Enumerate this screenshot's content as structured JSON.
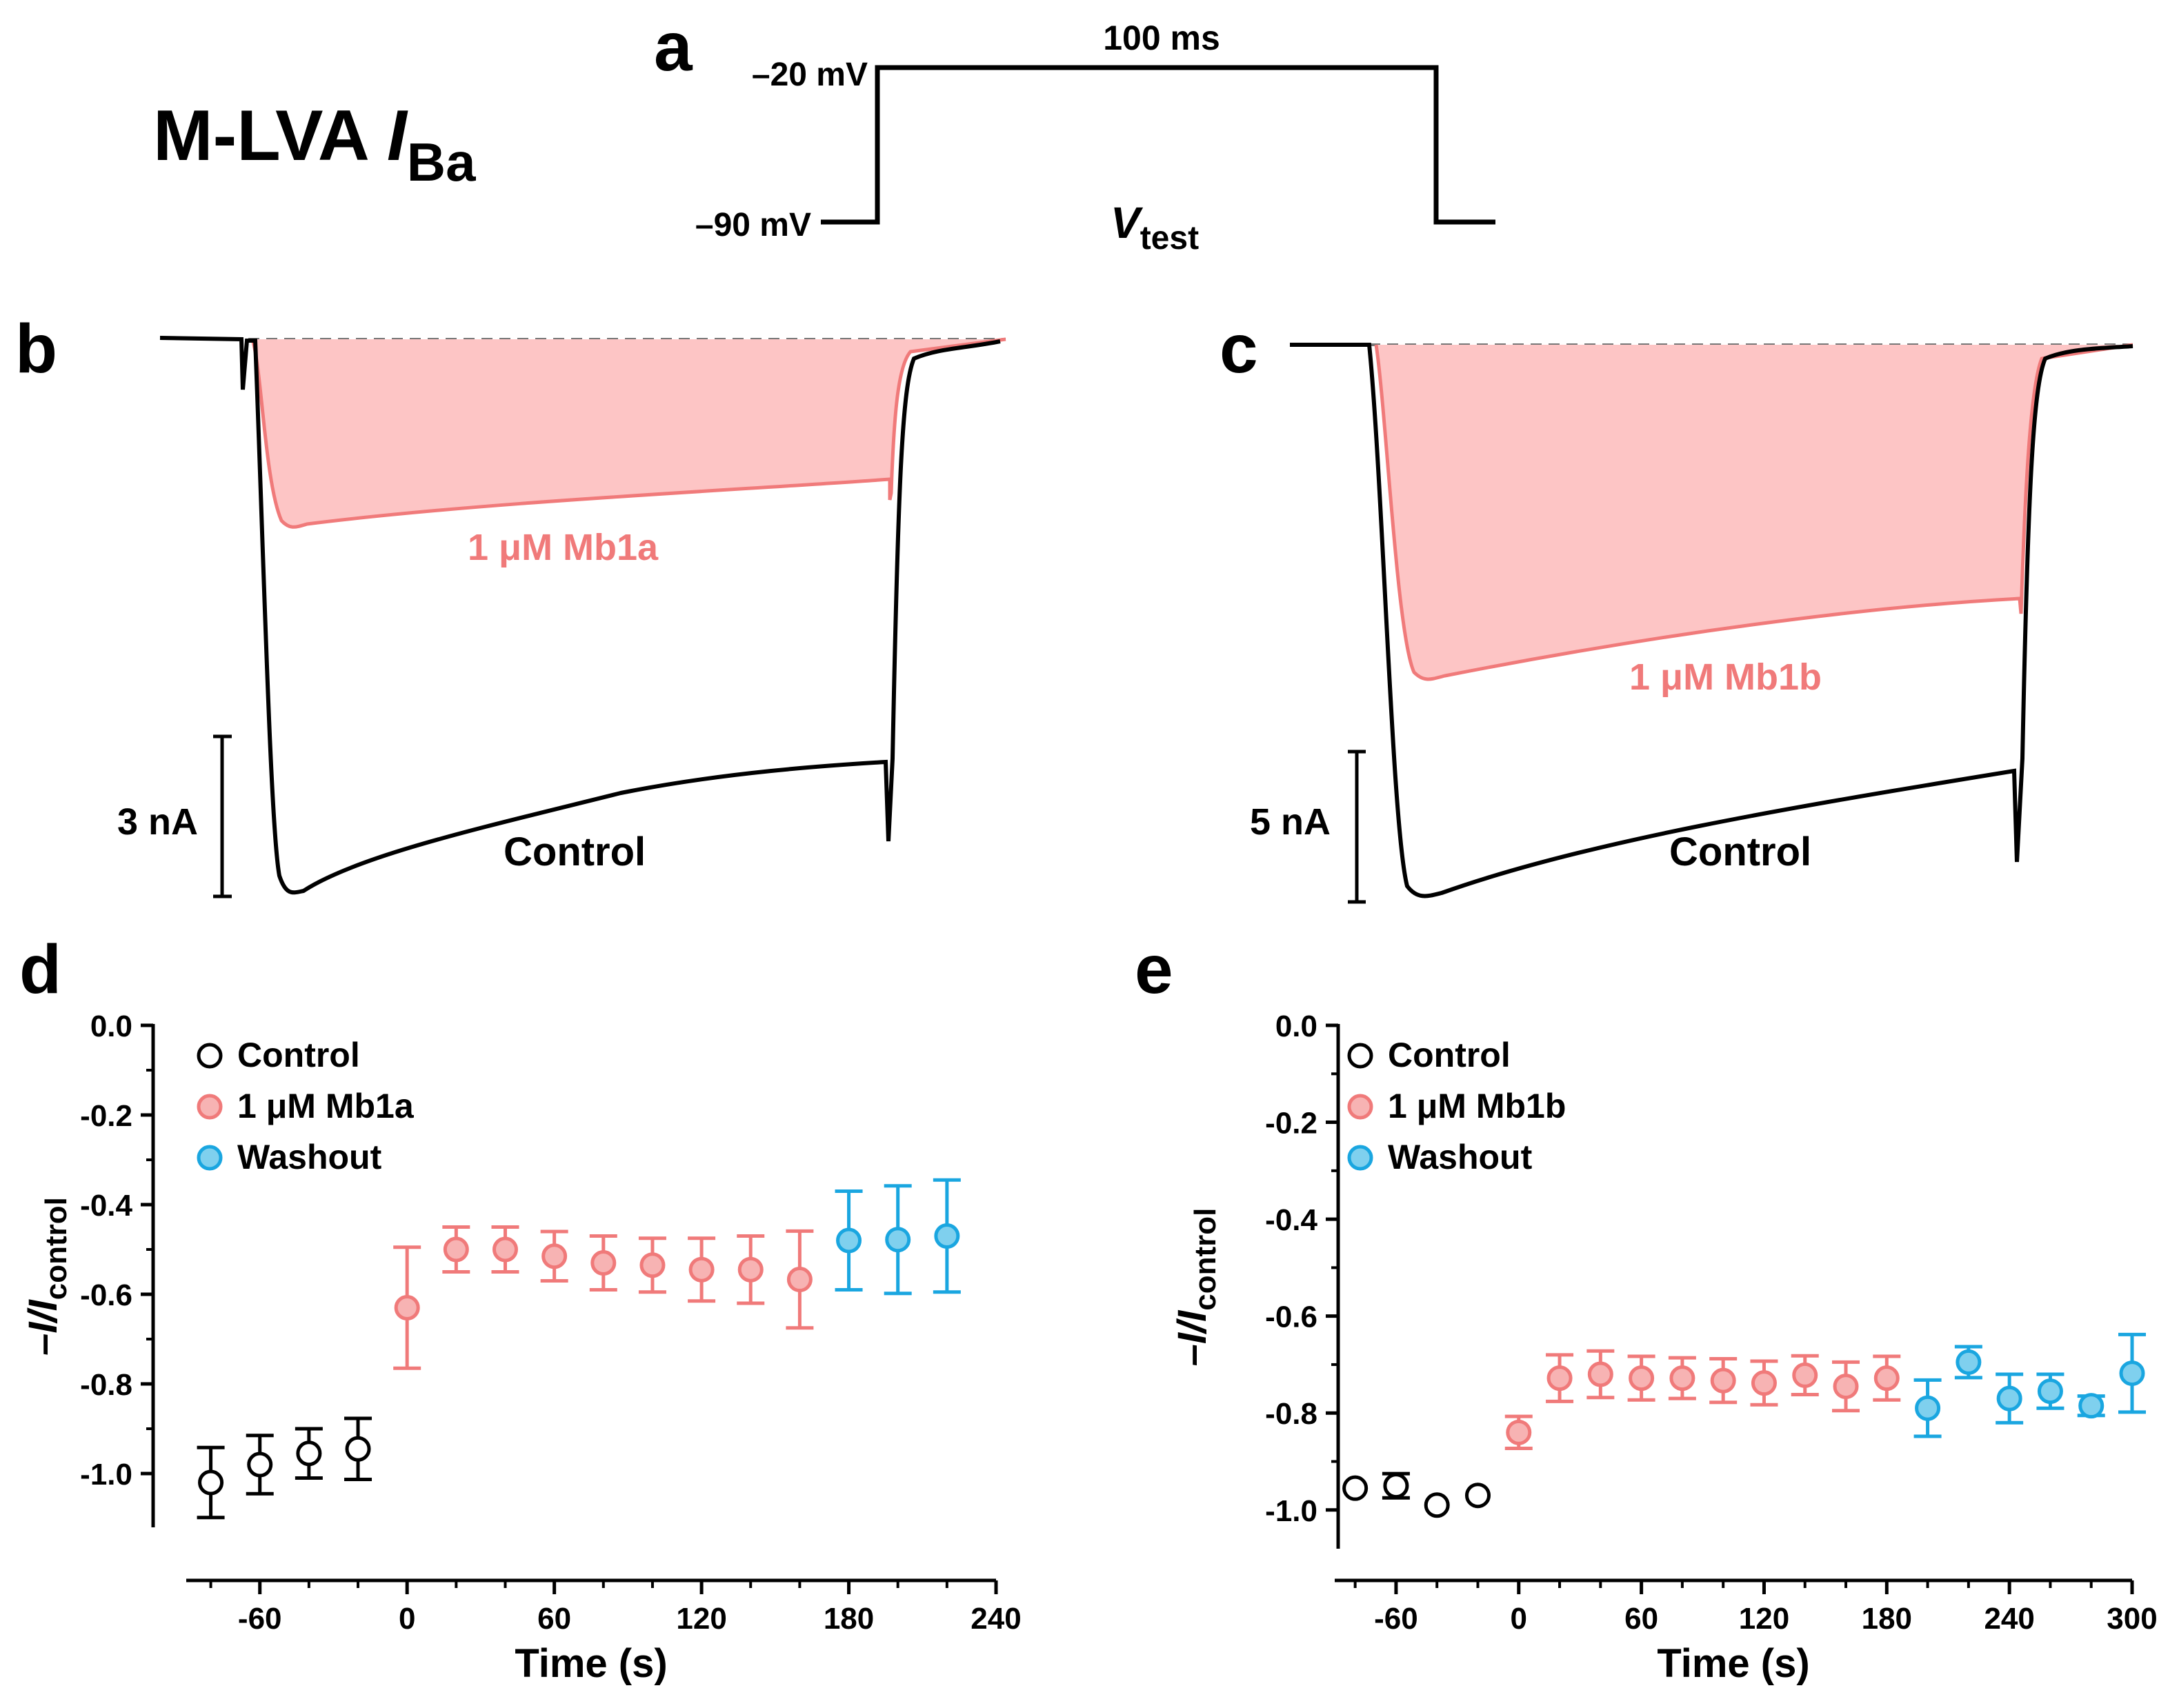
{
  "main_title": {
    "prefix": "M-LVA ",
    "italic": "I",
    "subscript": "Ba"
  },
  "colors": {
    "control": "#000000",
    "drug": "#f07a7a",
    "drug_fill": "#fdc5c5",
    "drug_marker": "#f7b3b3",
    "washout": "#1aa6e0",
    "washout_marker": "#7fd0ee",
    "baseline": "#777777"
  },
  "panel_a": {
    "letter": "a",
    "v_high": "–20 mV",
    "v_low": "–90 mV",
    "duration": "100 ms",
    "vtest_italic": "V",
    "vtest_sub": "test"
  },
  "panel_b": {
    "letter": "b",
    "drug_label": "1 μM Mb1a",
    "control_label": "Control",
    "scale_label": "3 nA"
  },
  "panel_c": {
    "letter": "c",
    "drug_label": "1 μM Mb1b",
    "control_label": "Control",
    "scale_label": "5 nA"
  },
  "chart_data": [
    {
      "panel": "d",
      "type": "scatter",
      "xlabel": "Time (s)",
      "ylabel_prefix": "–I/I",
      "ylabel_sub": "control",
      "xlim": [
        -90,
        240
      ],
      "ylim": [
        -1.12,
        0.0
      ],
      "xticks": [
        -60,
        0,
        60,
        120,
        180,
        240
      ],
      "yticks": [
        0.0,
        -0.2,
        -0.4,
        -0.6,
        -0.8,
        -1.0
      ],
      "xtick_labels": [
        "-60",
        "0",
        "60",
        "120",
        "180",
        "240"
      ],
      "ytick_labels": [
        "0.0",
        "-0.2",
        "-0.4",
        "-0.6",
        "-0.8",
        "-1.0"
      ],
      "legend": [
        "Control",
        "1 μM Mb1a",
        "Washout"
      ],
      "series": [
        {
          "name": "Control",
          "x": [
            -80,
            -60,
            -40,
            -20
          ],
          "y": [
            -1.02,
            -0.98,
            -0.955,
            -0.945
          ],
          "err": [
            0.078,
            0.065,
            0.055,
            0.068
          ]
        },
        {
          "name": "1 μM Mb1a",
          "x": [
            0,
            20,
            40,
            60,
            80,
            100,
            120,
            140,
            160
          ],
          "y": [
            -0.63,
            -0.5,
            -0.5,
            -0.515,
            -0.53,
            -0.535,
            -0.545,
            -0.545,
            -0.567
          ],
          "err": [
            0.135,
            0.05,
            0.05,
            0.055,
            0.06,
            0.06,
            0.07,
            0.075,
            0.108
          ]
        },
        {
          "name": "Washout",
          "x": [
            180,
            200,
            220
          ],
          "y": [
            -0.48,
            -0.478,
            -0.47
          ],
          "err": [
            0.11,
            0.12,
            0.125
          ]
        }
      ]
    },
    {
      "panel": "e",
      "type": "scatter",
      "xlabel": "Time (s)",
      "ylabel_prefix": "–I/I",
      "ylabel_sub": "control",
      "xlim": [
        -90,
        300
      ],
      "ylim": [
        -1.08,
        0.0
      ],
      "xticks": [
        -60,
        0,
        60,
        120,
        180,
        240,
        300
      ],
      "yticks": [
        0.0,
        -0.2,
        -0.4,
        -0.6,
        -0.8,
        -1.0
      ],
      "xtick_labels": [
        "-60",
        "0",
        "60",
        "120",
        "180",
        "240",
        "300"
      ],
      "ytick_labels": [
        "0.0",
        "-0.2",
        "-0.4",
        "-0.6",
        "-0.8",
        "-1.0"
      ],
      "legend": [
        "Control",
        "1 μM Mb1b",
        "Washout"
      ],
      "series": [
        {
          "name": "Control",
          "x": [
            -80,
            -60,
            -40,
            -20
          ],
          "y": [
            -0.955,
            -0.95,
            -0.99,
            -0.97
          ],
          "err": [
            0.0,
            0.025,
            0.0,
            0.0
          ]
        },
        {
          "name": "1 μM Mb1b",
          "x": [
            0,
            20,
            40,
            60,
            80,
            100,
            120,
            140,
            160,
            180
          ],
          "y": [
            -0.84,
            -0.728,
            -0.72,
            -0.728,
            -0.728,
            -0.733,
            -0.738,
            -0.722,
            -0.745,
            -0.728
          ],
          "err": [
            0.033,
            0.048,
            0.048,
            0.045,
            0.042,
            0.045,
            0.045,
            0.04,
            0.05,
            0.045
          ]
        },
        {
          "name": "Washout",
          "x": [
            200,
            220,
            240,
            260,
            280,
            300
          ],
          "y": [
            -0.79,
            -0.695,
            -0.77,
            -0.755,
            -0.785,
            -0.718
          ],
          "err": [
            0.058,
            0.032,
            0.05,
            0.035,
            0.02,
            0.08
          ]
        }
      ]
    }
  ]
}
